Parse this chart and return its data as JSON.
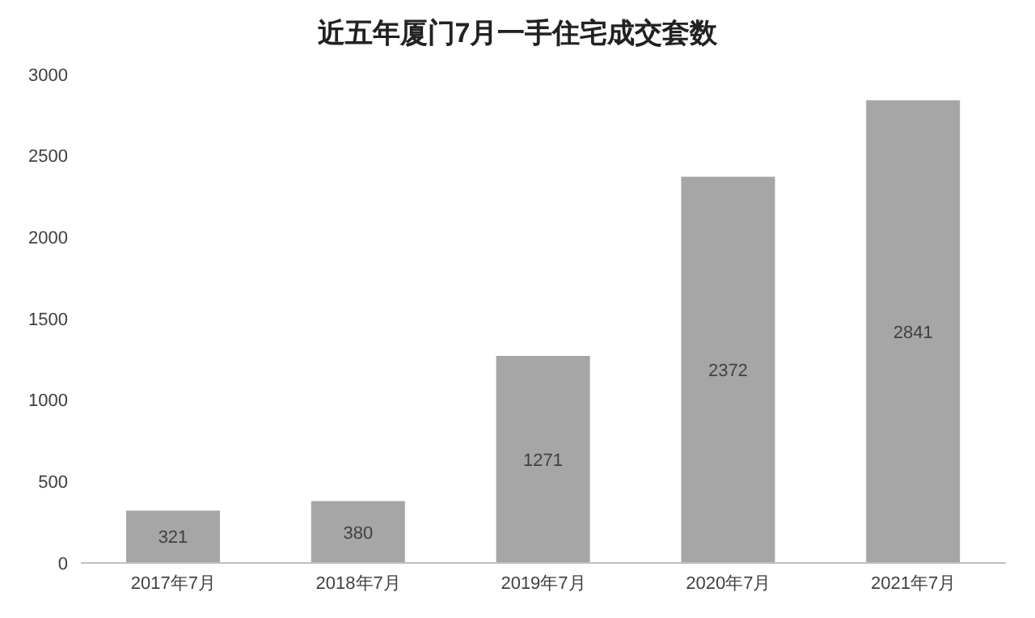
{
  "chart_data": {
    "type": "bar",
    "title": "近五年厦门7月一手住宅成交套数",
    "categories": [
      "2017年7月",
      "2018年7月",
      "2019年7月",
      "2020年7月",
      "2021年7月"
    ],
    "values": [
      321,
      380,
      1271,
      2372,
      2841
    ],
    "color": "#a6a6a6",
    "ylim": [
      0,
      3000
    ],
    "yticks": [
      0,
      500,
      1000,
      1500,
      2000,
      2500,
      3000
    ],
    "grid": false,
    "data_labels": true
  }
}
